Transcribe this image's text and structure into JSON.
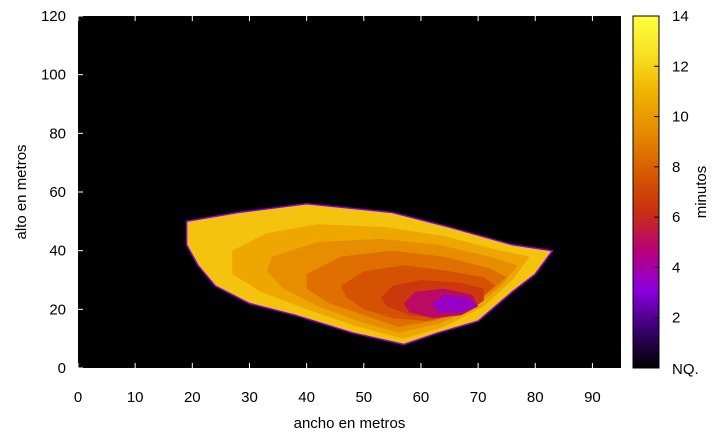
{
  "chart_data": {
    "type": "heatmap",
    "xlabel": "ancho en metros",
    "ylabel": "alto en metros",
    "xlim": [
      0,
      95
    ],
    "ylim": [
      0,
      120
    ],
    "xticks": [
      0,
      10,
      20,
      30,
      40,
      50,
      60,
      70,
      80,
      90
    ],
    "yticks": [
      0,
      20,
      40,
      60,
      80,
      100,
      120
    ],
    "background_value": "NQ.",
    "colorbar": {
      "label": "minutos",
      "range": [
        0,
        14
      ],
      "ticks": [
        2,
        4,
        6,
        8,
        10,
        12,
        14
      ],
      "bottom_label": "NQ.",
      "palette": [
        "#000000",
        "#3a0070",
        "#8a00e0",
        "#b8007a",
        "#c83010",
        "#d85a00",
        "#e68a00",
        "#f0b000",
        "#f8e020",
        "#ffff40"
      ]
    },
    "region_levels": [
      {
        "minutes": 11.5,
        "boundary": [
          [
            19,
            50
          ],
          [
            28,
            53
          ],
          [
            40,
            56
          ],
          [
            55,
            53
          ],
          [
            65,
            48
          ],
          [
            76,
            42
          ],
          [
            83,
            40
          ],
          [
            80,
            32
          ],
          [
            76,
            26
          ],
          [
            70,
            16
          ],
          [
            63,
            12
          ],
          [
            57,
            8
          ],
          [
            48,
            12
          ],
          [
            38,
            18
          ],
          [
            30,
            22
          ],
          [
            24,
            28
          ],
          [
            21,
            35
          ],
          [
            19,
            42
          ]
        ]
      },
      {
        "minutes": 10.5,
        "boundary": [
          [
            27,
            40
          ],
          [
            33,
            46
          ],
          [
            42,
            49
          ],
          [
            54,
            48
          ],
          [
            64,
            45
          ],
          [
            74,
            40
          ],
          [
            79,
            38
          ],
          [
            76,
            30
          ],
          [
            71,
            21
          ],
          [
            64,
            14
          ],
          [
            57,
            10
          ],
          [
            49,
            14
          ],
          [
            40,
            20
          ],
          [
            32,
            26
          ],
          [
            27,
            32
          ]
        ]
      },
      {
        "minutes": 9.5,
        "boundary": [
          [
            34,
            38
          ],
          [
            42,
            43
          ],
          [
            53,
            44
          ],
          [
            63,
            42
          ],
          [
            72,
            38
          ],
          [
            77,
            35
          ],
          [
            74,
            28
          ],
          [
            69,
            20
          ],
          [
            63,
            15
          ],
          [
            56,
            12
          ],
          [
            49,
            16
          ],
          [
            42,
            21
          ],
          [
            36,
            27
          ],
          [
            33,
            33
          ]
        ]
      },
      {
        "minutes": 8.5,
        "boundary": [
          [
            40,
            32
          ],
          [
            46,
            38
          ],
          [
            55,
            40
          ],
          [
            64,
            38
          ],
          [
            72,
            34
          ],
          [
            75,
            31
          ],
          [
            72,
            26
          ],
          [
            67,
            19
          ],
          [
            62,
            16
          ],
          [
            56,
            14
          ],
          [
            50,
            18
          ],
          [
            44,
            22
          ],
          [
            40,
            27
          ]
        ]
      },
      {
        "minutes": 7.5,
        "boundary": [
          [
            46,
            28
          ],
          [
            50,
            33
          ],
          [
            57,
            35
          ],
          [
            65,
            33
          ],
          [
            71,
            31
          ],
          [
            73,
            28
          ],
          [
            70,
            23
          ],
          [
            66,
            18
          ],
          [
            61,
            16
          ],
          [
            55,
            17
          ],
          [
            50,
            20
          ],
          [
            47,
            24
          ]
        ]
      },
      {
        "minutes": 6.5,
        "boundary": [
          [
            53,
            24
          ],
          [
            55,
            28
          ],
          [
            60,
            30
          ],
          [
            67,
            29
          ],
          [
            71,
            27
          ],
          [
            71,
            23
          ],
          [
            68,
            19
          ],
          [
            63,
            17
          ],
          [
            58,
            18
          ],
          [
            54,
            21
          ]
        ]
      },
      {
        "minutes": 5,
        "boundary": [
          [
            57,
            22
          ],
          [
            59,
            26
          ],
          [
            64,
            27
          ],
          [
            69,
            25
          ],
          [
            70,
            21
          ],
          [
            67,
            18
          ],
          [
            62,
            17
          ],
          [
            58,
            19
          ]
        ]
      },
      {
        "minutes": 3.5,
        "boundary": [
          [
            62,
            22
          ],
          [
            64,
            25
          ],
          [
            68,
            24
          ],
          [
            70,
            21
          ],
          [
            67,
            19
          ],
          [
            63,
            19
          ]
        ]
      }
    ]
  }
}
